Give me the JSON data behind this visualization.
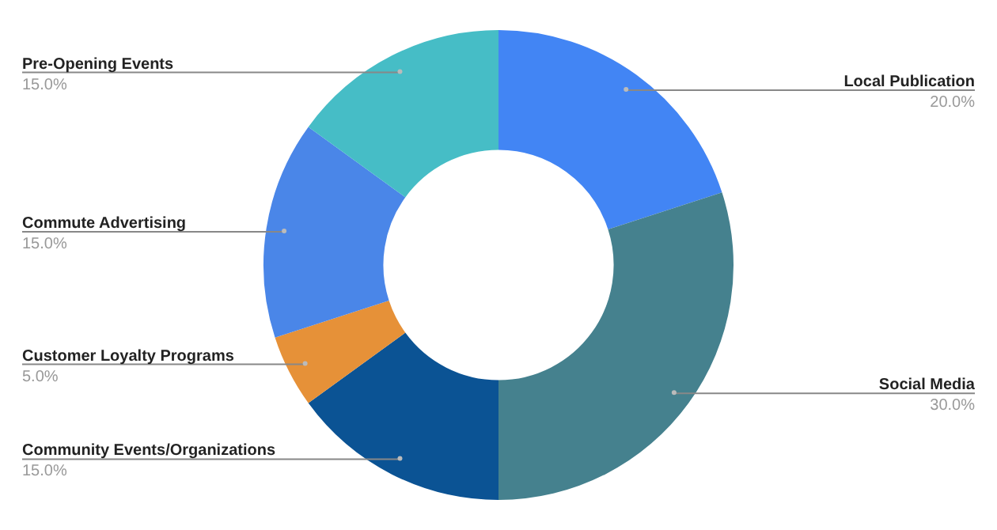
{
  "chart_data": {
    "type": "donut",
    "categories": [
      "Local Publication",
      "Social Media",
      "Community Events/Organizations",
      "Customer Loyalty Programs",
      "Commute Advertising",
      "Pre-Opening Events"
    ],
    "values": [
      20,
      30,
      15,
      5,
      15,
      15
    ],
    "colors": [
      "#4285f4",
      "#45818e",
      "#0b5394",
      "#e69138",
      "#4a86e8",
      "#46bdc6"
    ],
    "value_labels": [
      "20.0%",
      "30.0%",
      "15.0%",
      "5.0%",
      "15.0%",
      "15.0%"
    ],
    "legend": false
  }
}
